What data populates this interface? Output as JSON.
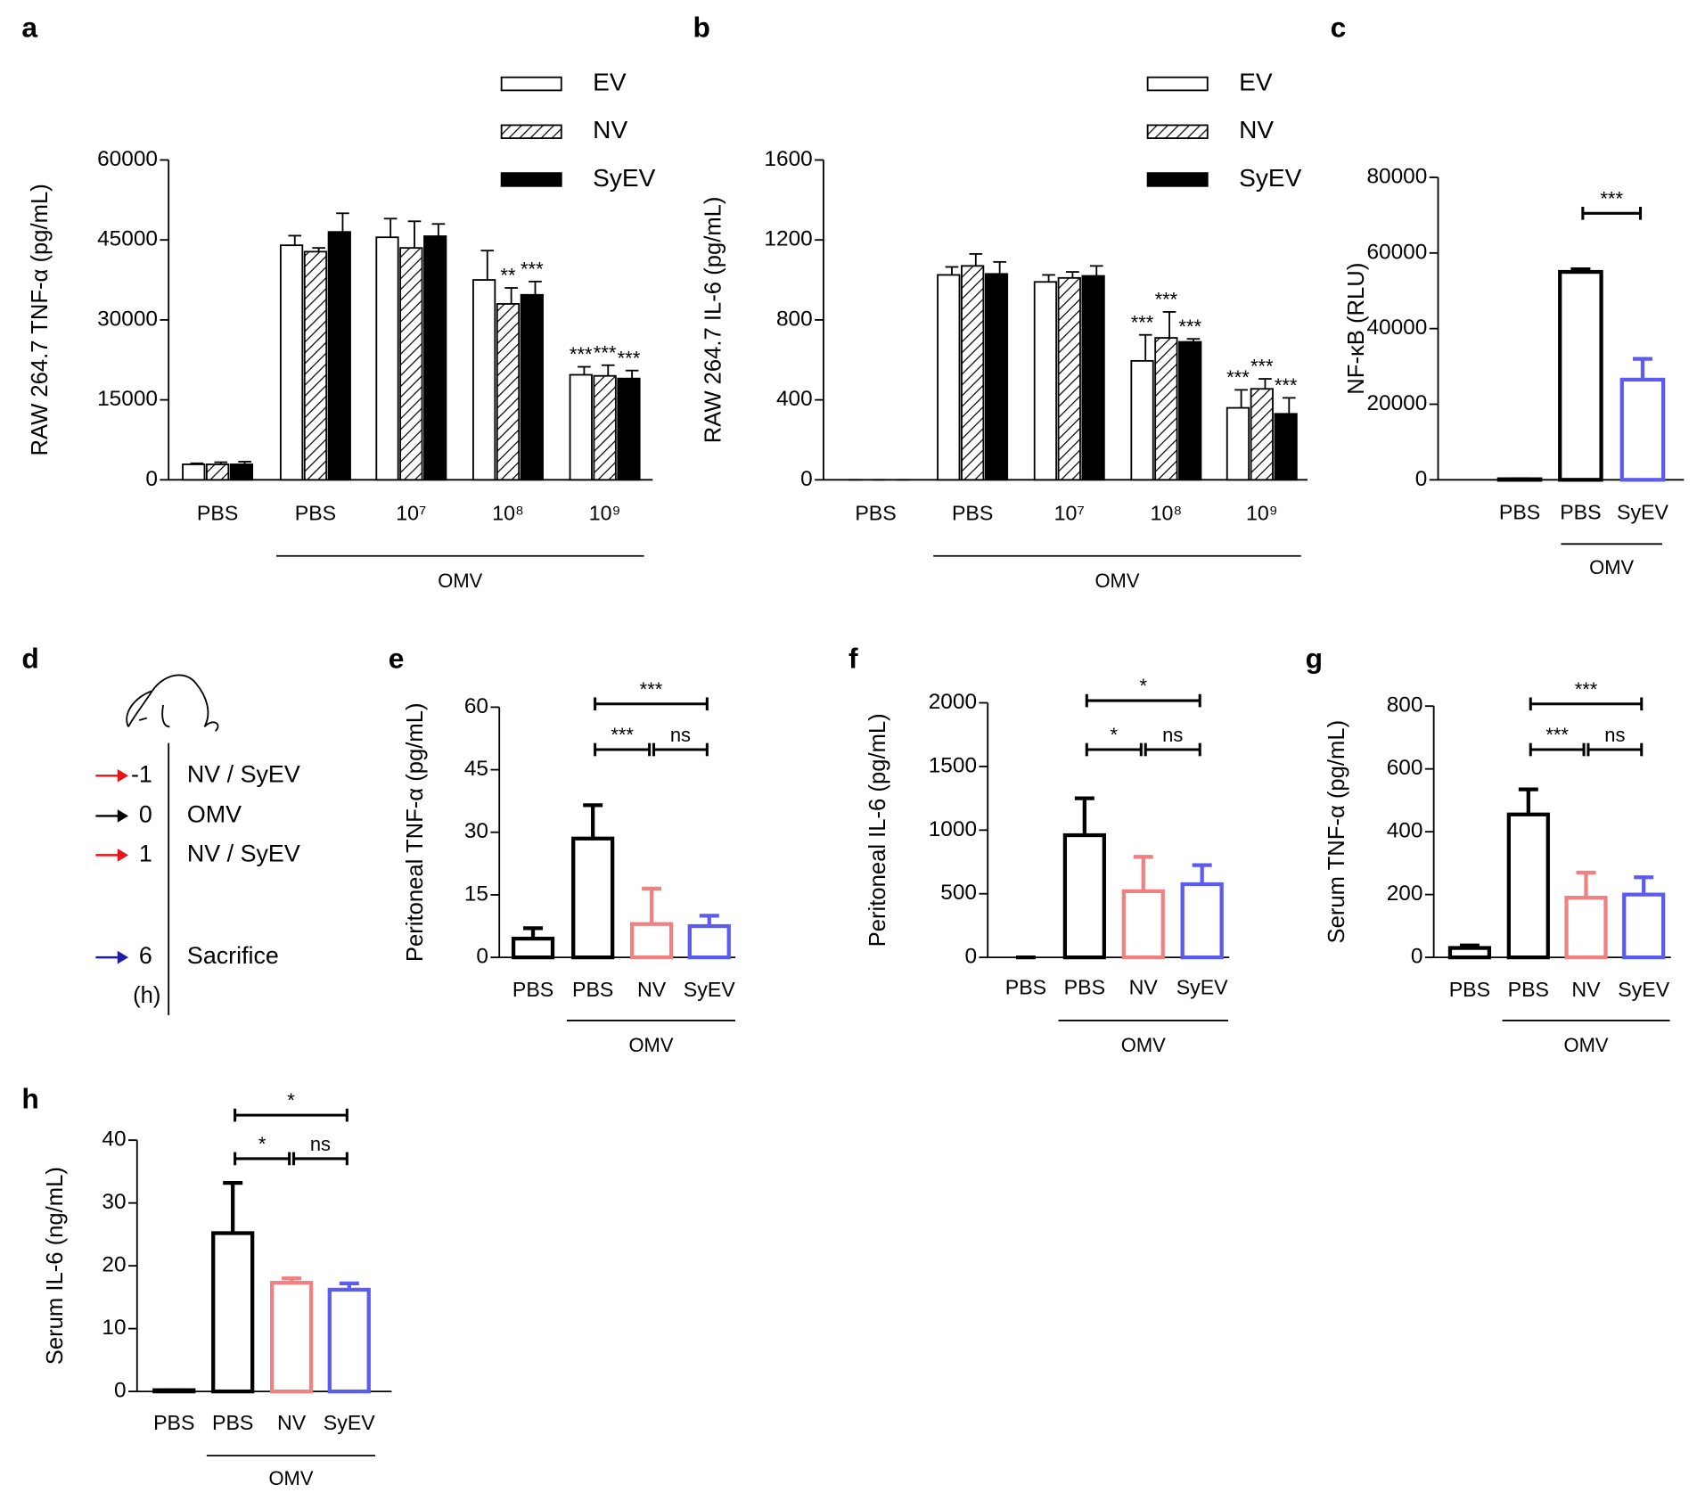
{
  "chart_data": [
    {
      "panel": "a",
      "type": "bar",
      "ylabel": "RAW 264.7 TNF-α (pg/mL)",
      "categories": [
        "PBS",
        "PBS",
        "10⁷",
        "10⁸",
        "10⁹"
      ],
      "group": {
        "label": "OMV",
        "categories": [
          1,
          4
        ]
      },
      "ylim": [
        0,
        60000
      ],
      "yticks": [
        0,
        15000,
        30000,
        45000,
        60000
      ],
      "series": [
        {
          "name": "EV",
          "color": "#ffffff",
          "hatch": false,
          "values": [
            2900,
            44000,
            45500,
            37500,
            19700
          ],
          "errors": [
            200,
            1800,
            3500,
            5500,
            1500
          ],
          "significance": [
            null,
            null,
            null,
            null,
            "***"
          ]
        },
        {
          "name": "NV",
          "color": "#ffffff",
          "hatch": true,
          "values": [
            2900,
            42800,
            43500,
            33000,
            19500
          ],
          "errors": [
            400,
            700,
            5000,
            3000,
            2000
          ],
          "significance": [
            null,
            null,
            null,
            "**",
            "***"
          ]
        },
        {
          "name": "SyEV",
          "color": "#000000",
          "hatch": false,
          "values": [
            2900,
            46500,
            45700,
            34700,
            19000
          ],
          "errors": [
            500,
            3500,
            2300,
            2500,
            1500
          ],
          "significance": [
            null,
            null,
            null,
            "***",
            "***"
          ]
        }
      ]
    },
    {
      "panel": "b",
      "type": "bar",
      "ylabel": "RAW 264.7 IL-6 (pg/mL)",
      "categories": [
        "PBS",
        "PBS",
        "10⁷",
        "10⁸",
        "10⁹"
      ],
      "group": {
        "label": "OMV",
        "categories": [
          1,
          4
        ]
      },
      "ylim": [
        0,
        1600
      ],
      "yticks": [
        0,
        400,
        800,
        1200,
        1600
      ],
      "series": [
        {
          "name": "EV",
          "color": "#ffffff",
          "hatch": false,
          "values": [
            0,
            1025,
            990,
            595,
            360
          ],
          "errors": [
            0,
            40,
            35,
            130,
            90
          ],
          "significance": [
            null,
            null,
            null,
            "***",
            "***"
          ]
        },
        {
          "name": "NV",
          "color": "#ffffff",
          "hatch": true,
          "values": [
            0,
            1070,
            1010,
            710,
            455
          ],
          "errors": [
            0,
            60,
            30,
            130,
            50
          ],
          "significance": [
            null,
            null,
            null,
            "***",
            "***"
          ]
        },
        {
          "name": "SyEV",
          "color": "#000000",
          "hatch": false,
          "values": [
            0,
            1030,
            1020,
            690,
            330
          ],
          "errors": [
            0,
            60,
            50,
            15,
            80
          ],
          "significance": [
            null,
            null,
            null,
            "***",
            "***"
          ]
        }
      ]
    },
    {
      "panel": "c",
      "type": "bar",
      "ylabel": "NF-κB (RLU)",
      "categories": [
        "PBS",
        "PBS",
        "SyEV"
      ],
      "group": {
        "label": "OMV",
        "categories": [
          1,
          2
        ]
      },
      "ylim": [
        0,
        80000
      ],
      "yticks": [
        0,
        20000,
        40000,
        60000,
        80000
      ],
      "values": [
        150,
        55000,
        26500
      ],
      "errors": [
        0,
        700,
        5500
      ],
      "colors": [
        "#000000",
        "#000000",
        "#5b5bef"
      ],
      "brackets": [
        {
          "categories": [
            1,
            2
          ],
          "label": "***"
        }
      ]
    },
    {
      "panel": "e",
      "type": "bar",
      "ylabel": "Peritoneal TNF-α (pg/mL)",
      "categories": [
        "PBS",
        "PBS",
        "NV",
        "SyEV"
      ],
      "group": {
        "label": "OMV",
        "categories": [
          1,
          3
        ]
      },
      "ylim": [
        0,
        60
      ],
      "yticks": [
        0,
        15,
        30,
        45,
        60
      ],
      "values": [
        4.5,
        28.5,
        8,
        7.5
      ],
      "errors": [
        2.5,
        8,
        8.5,
        2.5
      ],
      "colors": [
        "#000000",
        "#000000",
        "#f28080",
        "#5b5bef"
      ],
      "brackets": [
        {
          "categories": [
            1,
            2
          ],
          "label": "***"
        },
        {
          "categories": [
            2,
            3
          ],
          "label": "ns"
        },
        {
          "categories": [
            1,
            3
          ],
          "label": "***"
        }
      ]
    },
    {
      "panel": "f",
      "type": "bar",
      "ylabel": "Peritoneal IL-6 (pg/mL)",
      "categories": [
        "PBS",
        "PBS",
        "NV",
        "SyEV"
      ],
      "group": {
        "label": "OMV",
        "categories": [
          1,
          3
        ]
      },
      "ylim": [
        0,
        2000
      ],
      "yticks": [
        0,
        500,
        1000,
        1500,
        2000
      ],
      "values": [
        0,
        960,
        520,
        575
      ],
      "errors": [
        0,
        290,
        270,
        150
      ],
      "colors": [
        "#000000",
        "#000000",
        "#f28080",
        "#5b5bef"
      ],
      "brackets": [
        {
          "categories": [
            1,
            2
          ],
          "label": "*"
        },
        {
          "categories": [
            2,
            3
          ],
          "label": "ns"
        },
        {
          "categories": [
            1,
            3
          ],
          "label": "*"
        }
      ]
    },
    {
      "panel": "g",
      "type": "bar",
      "ylabel": "Serum TNF-α (pg/mL)",
      "categories": [
        "PBS",
        "PBS",
        "NV",
        "SyEV"
      ],
      "group": {
        "label": "OMV",
        "categories": [
          1,
          3
        ]
      },
      "ylim": [
        0,
        800
      ],
      "yticks": [
        0,
        200,
        400,
        600,
        800
      ],
      "values": [
        30,
        455,
        190,
        200
      ],
      "errors": [
        8,
        80,
        80,
        55
      ],
      "colors": [
        "#000000",
        "#000000",
        "#f28080",
        "#5b5bef"
      ],
      "brackets": [
        {
          "categories": [
            1,
            2
          ],
          "label": "***"
        },
        {
          "categories": [
            2,
            3
          ],
          "label": "ns"
        },
        {
          "categories": [
            1,
            3
          ],
          "label": "***"
        }
      ]
    },
    {
      "panel": "h",
      "type": "bar",
      "ylabel": "Serum IL-6 (ng/mL)",
      "categories": [
        "PBS",
        "PBS",
        "NV",
        "SyEV"
      ],
      "group": {
        "label": "OMV",
        "categories": [
          1,
          3
        ]
      },
      "ylim": [
        0,
        40
      ],
      "yticks": [
        0,
        10,
        20,
        30,
        40
      ],
      "values": [
        0.2,
        25.2,
        17.3,
        16.2
      ],
      "errors": [
        0,
        8,
        0.7,
        1
      ],
      "colors": [
        "#000000",
        "#000000",
        "#f28080",
        "#5b5bef"
      ],
      "brackets": [
        {
          "categories": [
            1,
            2
          ],
          "label": "*"
        },
        {
          "categories": [
            2,
            3
          ],
          "label": "ns"
        },
        {
          "categories": [
            1,
            3
          ],
          "label": "*"
        }
      ]
    }
  ],
  "timeline": {
    "panel": "d",
    "unit": "(h)",
    "events": [
      {
        "time": -1,
        "label": "NV / SyEV",
        "color": "#e8141a"
      },
      {
        "time": 0,
        "label": "OMV",
        "color": "#000000"
      },
      {
        "time": 1,
        "label": "NV / SyEV",
        "color": "#e8141a"
      },
      {
        "time": 6,
        "label": "Sacrifice",
        "color": "#1c1ca8"
      }
    ]
  }
}
